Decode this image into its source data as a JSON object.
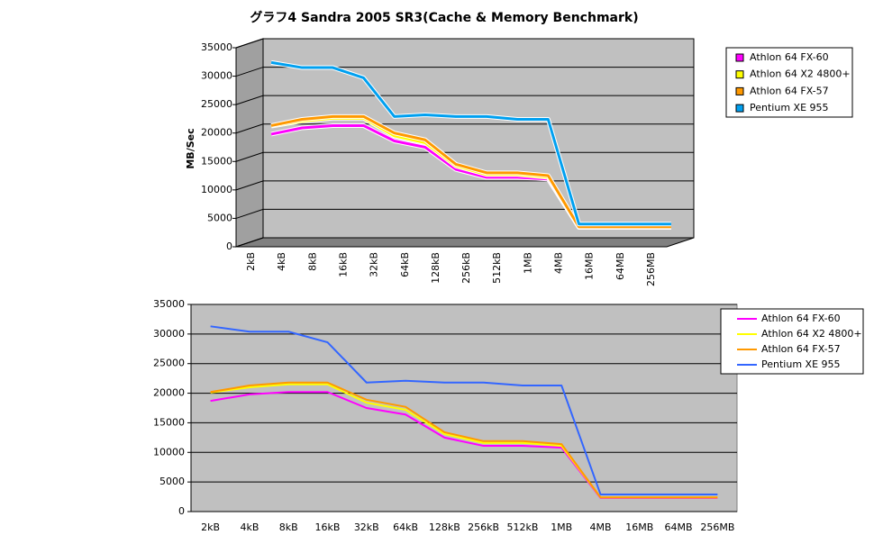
{
  "chart_data": [
    {
      "type": "line",
      "three_d": true,
      "title": "グラフ4  Sandra 2005 SR3(Cache & Memory Benchmark)",
      "y_label": "MB/Sec",
      "categories": [
        "2kB",
        "4kB",
        "8kB",
        "16kB",
        "32kB",
        "64kB",
        "128kB",
        "256kB",
        "512kB",
        "1MB",
        "4MB",
        "16MB",
        "64MB",
        "256MB"
      ],
      "series": [
        {
          "name": "Athlon 64 FX-60",
          "color": "#ff00ff",
          "values": [
            18700,
            19800,
            20200,
            20200,
            17500,
            16400,
            12500,
            11100,
            11100,
            10800,
            2300,
            2300,
            2300,
            2300
          ]
        },
        {
          "name": "Athlon 64 X2 4800+",
          "color": "#ffff00",
          "values": [
            20100,
            21000,
            21500,
            21500,
            18400,
            17200,
            13100,
            11600,
            11600,
            11100,
            2400,
            2400,
            2400,
            2400
          ]
        },
        {
          "name": "Athlon 64 FX-57",
          "color": "#ff9900",
          "values": [
            20200,
            21300,
            21800,
            21800,
            18900,
            17700,
            13400,
            11900,
            11900,
            11400,
            2400,
            2400,
            2400,
            2400
          ]
        },
        {
          "name": "Pentium XE 955",
          "color": "#00a0f0",
          "values": [
            31300,
            30400,
            30400,
            28600,
            21800,
            22100,
            21800,
            21800,
            21300,
            21300,
            2900,
            2900,
            2900,
            2900
          ]
        }
      ],
      "ylim": [
        0,
        35000
      ],
      "yticks": [
        0,
        5000,
        10000,
        15000,
        20000,
        25000,
        30000,
        35000
      ],
      "grid": true,
      "legend": "right",
      "legend_marker": "square"
    },
    {
      "type": "line",
      "three_d": false,
      "categories": [
        "2kB",
        "4kB",
        "8kB",
        "16kB",
        "32kB",
        "64kB",
        "128kB",
        "256kB",
        "512kB",
        "1MB",
        "4MB",
        "16MB",
        "64MB",
        "256MB"
      ],
      "series": [
        {
          "name": "Athlon 64 FX-60",
          "color": "#ff00ff",
          "values": [
            18700,
            19800,
            20200,
            20200,
            17500,
            16400,
            12500,
            11100,
            11100,
            10800,
            2300,
            2300,
            2300,
            2300
          ]
        },
        {
          "name": "Athlon 64 X2 4800+",
          "color": "#ffff00",
          "values": [
            20100,
            21000,
            21500,
            21500,
            18400,
            17200,
            13100,
            11600,
            11600,
            11100,
            2400,
            2400,
            2400,
            2400
          ]
        },
        {
          "name": "Athlon 64 FX-57",
          "color": "#ff9900",
          "values": [
            20200,
            21300,
            21800,
            21800,
            18900,
            17700,
            13400,
            11900,
            11900,
            11400,
            2400,
            2400,
            2400,
            2400
          ]
        },
        {
          "name": "Pentium XE 955",
          "color": "#3366ff",
          "values": [
            31300,
            30400,
            30400,
            28600,
            21800,
            22100,
            21800,
            21800,
            21300,
            21300,
            2900,
            2900,
            2900,
            2900
          ]
        }
      ],
      "ylim": [
        0,
        35000
      ],
      "yticks": [
        0,
        5000,
        10000,
        15000,
        20000,
        25000,
        30000,
        35000
      ],
      "grid": true,
      "legend": "right",
      "legend_marker": "line"
    }
  ]
}
